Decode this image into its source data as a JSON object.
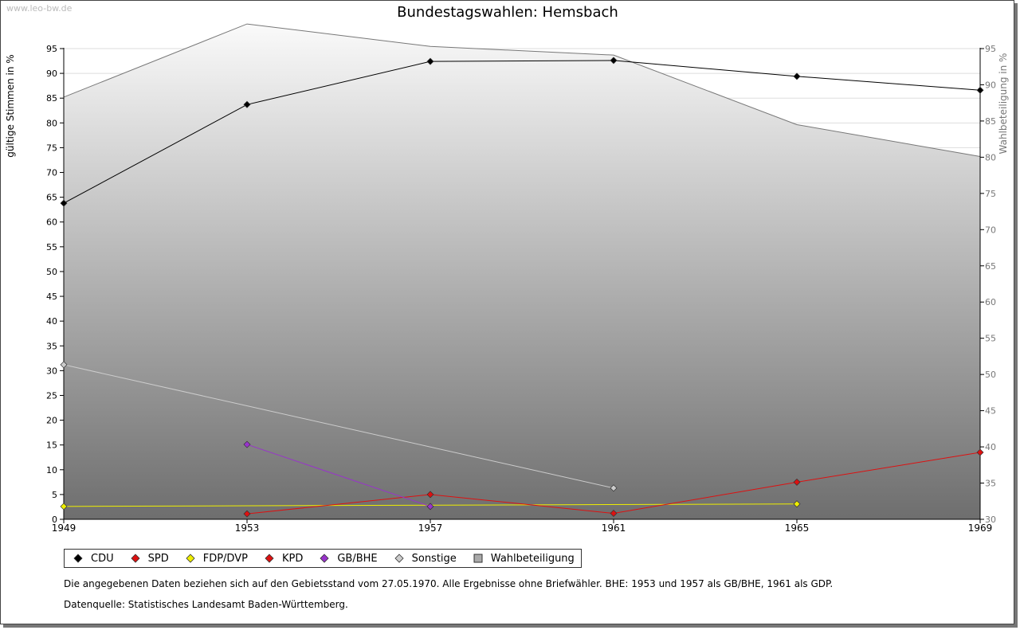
{
  "watermark": "www.leo-bw.de",
  "chart_data": {
    "type": "line",
    "title": "Bundestagswahlen: Hemsbach",
    "ylabel": "gültige Stimmen in %",
    "y2label": "Wahlbeteiligung in %",
    "x": [
      1949,
      1953,
      1957,
      1961,
      1965,
      1969
    ],
    "x_tick_labels": [
      "1949",
      "1953",
      "1957",
      "1961",
      "1965",
      "1969"
    ],
    "ylim": [
      0,
      95
    ],
    "yticks": [
      0,
      5,
      10,
      15,
      20,
      25,
      30,
      35,
      40,
      45,
      50,
      55,
      60,
      65,
      70,
      75,
      80,
      85,
      90,
      95
    ],
    "y2lim": [
      30,
      95
    ],
    "y2ticks": [
      30,
      35,
      40,
      45,
      50,
      55,
      60,
      65,
      70,
      75,
      80,
      85,
      90,
      95
    ],
    "area": {
      "name": "Wahlbeteiligung",
      "axis": "right",
      "values": [
        88.3,
        98.4,
        95.3,
        94.1,
        84.5,
        80.1
      ],
      "color": "#777777"
    },
    "series": [
      {
        "name": "CDU",
        "color": "#000000",
        "values": [
          63.8,
          83.7,
          92.4,
          92.6,
          89.4,
          86.6
        ]
      },
      {
        "name": "SPD",
        "color": "#dd1111",
        "values": [
          null,
          null,
          null,
          null,
          null,
          null
        ]
      },
      {
        "name": "FDP/DVP",
        "color": "#eeee00",
        "values": [
          2.6,
          null,
          null,
          null,
          3.1,
          null
        ]
      },
      {
        "name": "KPD",
        "color": "#dd1111",
        "values": [
          null,
          1.1,
          5.0,
          1.2,
          7.5,
          13.5
        ]
      },
      {
        "name": "GB/BHE",
        "color": "#9933cc",
        "values": [
          null,
          15.1,
          2.6,
          null,
          null,
          null
        ]
      },
      {
        "name": "Sonstige",
        "color": "#cccccc",
        "values": [
          31.2,
          null,
          null,
          6.3,
          null,
          null
        ]
      }
    ],
    "legend_position": "bottom-left"
  },
  "legend": [
    {
      "label": "CDU",
      "color": "#000000",
      "shape": "diamond"
    },
    {
      "label": "SPD",
      "color": "#dd1111",
      "shape": "diamond"
    },
    {
      "label": "FDP/DVP",
      "color": "#eeee00",
      "shape": "diamond"
    },
    {
      "label": "KPD",
      "color": "#dd1111",
      "shape": "diamond"
    },
    {
      "label": "GB/BHE",
      "color": "#9933cc",
      "shape": "diamond"
    },
    {
      "label": "Sonstige",
      "color": "#cccccc",
      "shape": "diamond"
    },
    {
      "label": "Wahlbeteiligung",
      "color": "#aaaaaa",
      "shape": "square"
    }
  ],
  "notes": {
    "note1": "Die angegebenen Daten beziehen sich auf den Gebietsstand vom 27.05.1970. Alle Ergebnisse ohne Briefwähler. BHE: 1953 und 1957 als GB/BHE, 1961 als GDP.",
    "note2": "Datenquelle: Statistisches Landesamt Baden-Württemberg."
  }
}
